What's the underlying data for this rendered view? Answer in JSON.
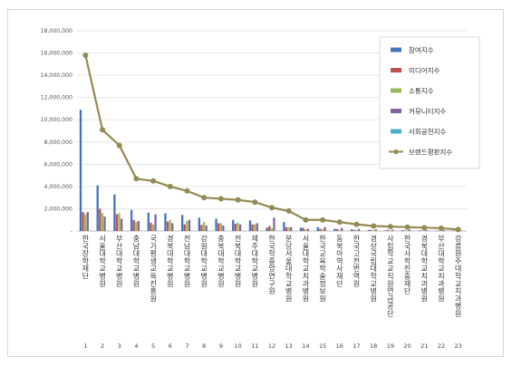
{
  "chart_data": {
    "type": "bar",
    "title": "",
    "xlabel": "",
    "ylabel": "",
    "ylim": [
      0,
      18000000
    ],
    "yticks": [
      "-",
      "2,000,000",
      "4,000,000",
      "6,000,000",
      "8,000,000",
      "10,000,000",
      "12,000,000",
      "14,000,000",
      "16,000,000",
      "18,000,000"
    ],
    "ranks": [
      "1",
      "2",
      "3",
      "4",
      "5",
      "6",
      "7",
      "8",
      "9",
      "10",
      "11",
      "12",
      "13",
      "14",
      "15",
      "16",
      "17",
      "18",
      "19",
      "20",
      "21",
      "22",
      "23"
    ],
    "categories": [
      "한국장학재단",
      "서울대학교병원",
      "부산대학교병원",
      "충남대학교병원",
      "국가평생교육진흥원",
      "경북대학교병원",
      "전남대학교병원",
      "강원대학교병원",
      "충북대학교병원",
      "전북대학교병원",
      "제주대학교병원",
      "한국학중앙연구원",
      "분당서울대학교병원",
      "서울대학교치과병원",
      "한국교육학술정보원",
      "동북아역사재단",
      "한국고전번역원",
      "경상국립대학교병원",
      "사립학교교직원연금공단",
      "한국사학진흥재단",
      "경북대학교치과병원",
      "부산대학교치과병원",
      "강릉원주대학교치과병원"
    ],
    "series": [
      {
        "name": "참여지수",
        "color": "#4472c4",
        "values": [
          10900000,
          4100000,
          3300000,
          1900000,
          1650000,
          1600000,
          1450000,
          1200000,
          1100000,
          1000000,
          950000,
          300000,
          800000,
          300000,
          350000,
          200000,
          150000,
          100000,
          50000,
          80000,
          60000,
          40000,
          20000
        ]
      },
      {
        "name": "미디어지수",
        "color": "#c0504d",
        "values": [
          1700000,
          2000000,
          1500000,
          1000000,
          750000,
          850000,
          600000,
          550000,
          700000,
          650000,
          600000,
          450000,
          350000,
          280000,
          200000,
          180000,
          100000,
          90000,
          100000,
          50000,
          40000,
          30000,
          15000
        ]
      },
      {
        "name": "소통지수",
        "color": "#9bbb59",
        "values": [
          1500000,
          1600000,
          1600000,
          800000,
          600000,
          1000000,
          900000,
          800000,
          700000,
          750000,
          600000,
          250000,
          350000,
          150000,
          150000,
          100000,
          80000,
          60000,
          50000,
          40000,
          30000,
          20000,
          10000
        ]
      },
      {
        "name": "커뮤니티지수",
        "color": "#8064a2",
        "values": [
          1700000,
          1300000,
          1100000,
          900000,
          1500000,
          700000,
          1000000,
          500000,
          500000,
          600000,
          700000,
          1200000,
          350000,
          200000,
          350000,
          280000,
          180000,
          150000,
          120000,
          120000,
          90000,
          80000,
          50000
        ]
      },
      {
        "name": "사회공헌지수",
        "color": "#4bacc6",
        "values": [
          0,
          0,
          0,
          0,
          0,
          0,
          0,
          0,
          0,
          0,
          0,
          0,
          0,
          0,
          0,
          0,
          0,
          0,
          0,
          0,
          0,
          0,
          0
        ]
      },
      {
        "name": "브랜드평판지수",
        "color": "#948a54",
        "type": "line",
        "values": [
          15800000,
          9100000,
          7700000,
          4700000,
          4500000,
          4000000,
          3600000,
          3000000,
          2900000,
          2800000,
          2600000,
          2100000,
          1800000,
          1000000,
          1000000,
          800000,
          600000,
          450000,
          400000,
          350000,
          300000,
          250000,
          130000
        ]
      }
    ],
    "legend_position": "right",
    "grid": true
  }
}
